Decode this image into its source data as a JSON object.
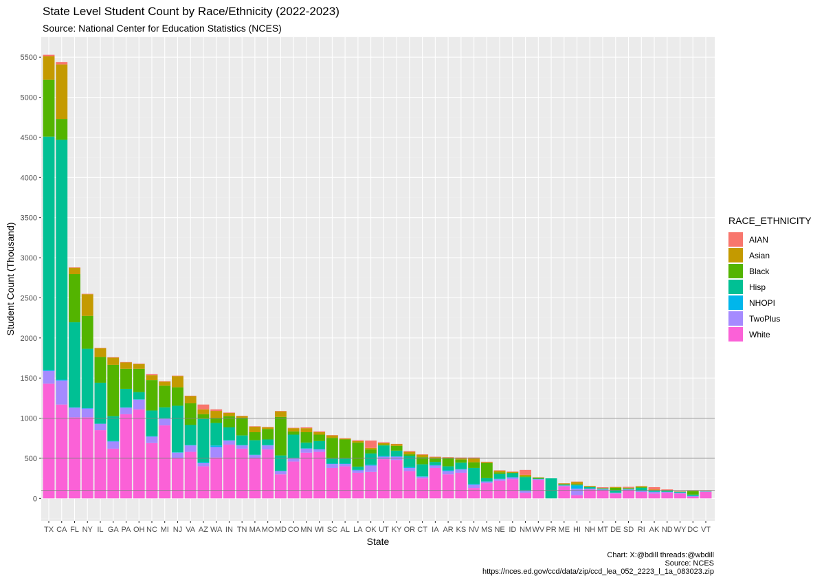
{
  "title": "State Level Student Count by Race/Ethnicity (2022-2023)",
  "subtitle": "Source: National Center for Education Statistics (NCES)",
  "caption": [
    "Chart: X:@bdill threads:@wbdill",
    "Source: NCES",
    "https://nces.ed.gov/ccd/data/zip/ccd_lea_052_2223_l_1a_083023.zip"
  ],
  "legend_title": "RACE_ETHNICITY",
  "colors": {
    "AIAN": "#F8766D",
    "Asian": "#C49A00",
    "Black": "#53B400",
    "Hisp": "#00C094",
    "NHOPI": "#00B6EB",
    "TwoPlus": "#A58AFF",
    "White": "#FB61D7",
    "panel": "#EBEBEB",
    "grid_major": "#FFFFFF",
    "grid_minor": "#F2F2F2",
    "ref_line": "#808080"
  },
  "chart_data": {
    "type": "bar",
    "stacked": true,
    "xlabel": "State",
    "ylabel": "Student Count (Thousand)",
    "ylim": [
      -280,
      5750
    ],
    "yticks": [
      0,
      500,
      1000,
      1500,
      2000,
      2500,
      3000,
      3500,
      4000,
      4500,
      5000,
      5500
    ],
    "reference_lines": [
      100,
      500,
      1000
    ],
    "grid": true,
    "legend_position": "right",
    "stack_order_bottom_to_top": [
      "White",
      "TwoPlus",
      "NHOPI",
      "Hisp",
      "Black",
      "Asian",
      "AIAN"
    ],
    "categories": [
      "TX",
      "CA",
      "FL",
      "NY",
      "IL",
      "GA",
      "PA",
      "OH",
      "NC",
      "MI",
      "NJ",
      "VA",
      "AZ",
      "WA",
      "IN",
      "TN",
      "MA",
      "MO",
      "MD",
      "CO",
      "MN",
      "WI",
      "SC",
      "AL",
      "LA",
      "OK",
      "UT",
      "KY",
      "OR",
      "CT",
      "IA",
      "AR",
      "KS",
      "NV",
      "MS",
      "NE",
      "ID",
      "NM",
      "WV",
      "PR",
      "ME",
      "HI",
      "NH",
      "MT",
      "DE",
      "SD",
      "RI",
      "AK",
      "ND",
      "WY",
      "DC",
      "VT"
    ],
    "series": [
      {
        "name": "White",
        "values": [
          1430,
          1170,
          1010,
          1010,
          850,
          620,
          1050,
          1110,
          690,
          910,
          500,
          580,
          400,
          510,
          670,
          620,
          500,
          610,
          300,
          460,
          570,
          580,
          380,
          400,
          320,
          330,
          490,
          480,
          340,
          250,
          380,
          300,
          320,
          130,
          190,
          220,
          240,
          70,
          230,
          0,
          150,
          40,
          110,
          100,
          60,
          100,
          80,
          60,
          70,
          60,
          20,
          80
        ]
      },
      {
        "name": "TwoPlus",
        "values": [
          160,
          300,
          120,
          110,
          80,
          90,
          80,
          120,
          80,
          80,
          70,
          80,
          40,
          130,
          50,
          40,
          40,
          50,
          40,
          40,
          50,
          30,
          50,
          30,
          30,
          80,
          30,
          40,
          40,
          20,
          30,
          40,
          40,
          40,
          20,
          20,
          20,
          20,
          10,
          0,
          10,
          80,
          10,
          10,
          10,
          10,
          10,
          20,
          10,
          10,
          10,
          5
        ]
      },
      {
        "name": "NHOPI",
        "values": [
          10,
          10,
          5,
          5,
          2,
          5,
          5,
          5,
          5,
          5,
          5,
          5,
          10,
          20,
          5,
          5,
          5,
          5,
          5,
          5,
          5,
          5,
          5,
          5,
          5,
          10,
          10,
          5,
          10,
          5,
          5,
          10,
          5,
          10,
          2,
          5,
          5,
          5,
          2,
          0,
          2,
          40,
          2,
          2,
          2,
          2,
          2,
          5,
          2,
          2,
          2,
          1
        ]
      },
      {
        "name": "Hisp",
        "values": [
          2910,
          2990,
          1060,
          740,
          510,
          310,
          230,
          90,
          320,
          140,
          580,
          250,
          540,
          280,
          160,
          120,
          180,
          70,
          190,
          290,
          70,
          100,
          60,
          60,
          40,
          140,
          130,
          70,
          140,
          150,
          40,
          50,
          80,
          200,
          40,
          60,
          50,
          170,
          5,
          250,
          10,
          10,
          20,
          10,
          30,
          10,
          40,
          10,
          10,
          10,
          15,
          2
        ]
      },
      {
        "name": "Black",
        "values": [
          710,
          260,
          600,
          410,
          320,
          640,
          250,
          290,
          380,
          270,
          230,
          270,
          60,
          60,
          140,
          220,
          100,
          130,
          480,
          40,
          130,
          80,
          260,
          240,
          300,
          50,
          10,
          60,
          20,
          90,
          40,
          100,
          40,
          70,
          190,
          20,
          5,
          10,
          10,
          0,
          5,
          5,
          2,
          2,
          30,
          2,
          10,
          5,
          5,
          2,
          45,
          2
        ]
      },
      {
        "name": "Asian",
        "values": [
          290,
          680,
          80,
          270,
          110,
          90,
          80,
          60,
          60,
          50,
          140,
          90,
          60,
          90,
          40,
          20,
          70,
          20,
          70,
          40,
          50,
          30,
          30,
          10,
          20,
          20,
          20,
          20,
          30,
          30,
          20,
          10,
          20,
          50,
          10,
          20,
          10,
          20,
          5,
          0,
          10,
          30,
          10,
          5,
          10,
          10,
          10,
          10,
          5,
          2,
          2,
          2
        ]
      },
      {
        "name": "AIAN",
        "values": [
          20,
          30,
          5,
          5,
          5,
          5,
          5,
          5,
          15,
          5,
          5,
          5,
          60,
          20,
          5,
          5,
          5,
          5,
          5,
          5,
          10,
          10,
          5,
          5,
          10,
          90,
          10,
          5,
          10,
          5,
          5,
          5,
          5,
          10,
          5,
          5,
          5,
          60,
          2,
          0,
          2,
          5,
          2,
          10,
          2,
          10,
          2,
          30,
          10,
          5,
          2,
          2
        ]
      }
    ]
  }
}
